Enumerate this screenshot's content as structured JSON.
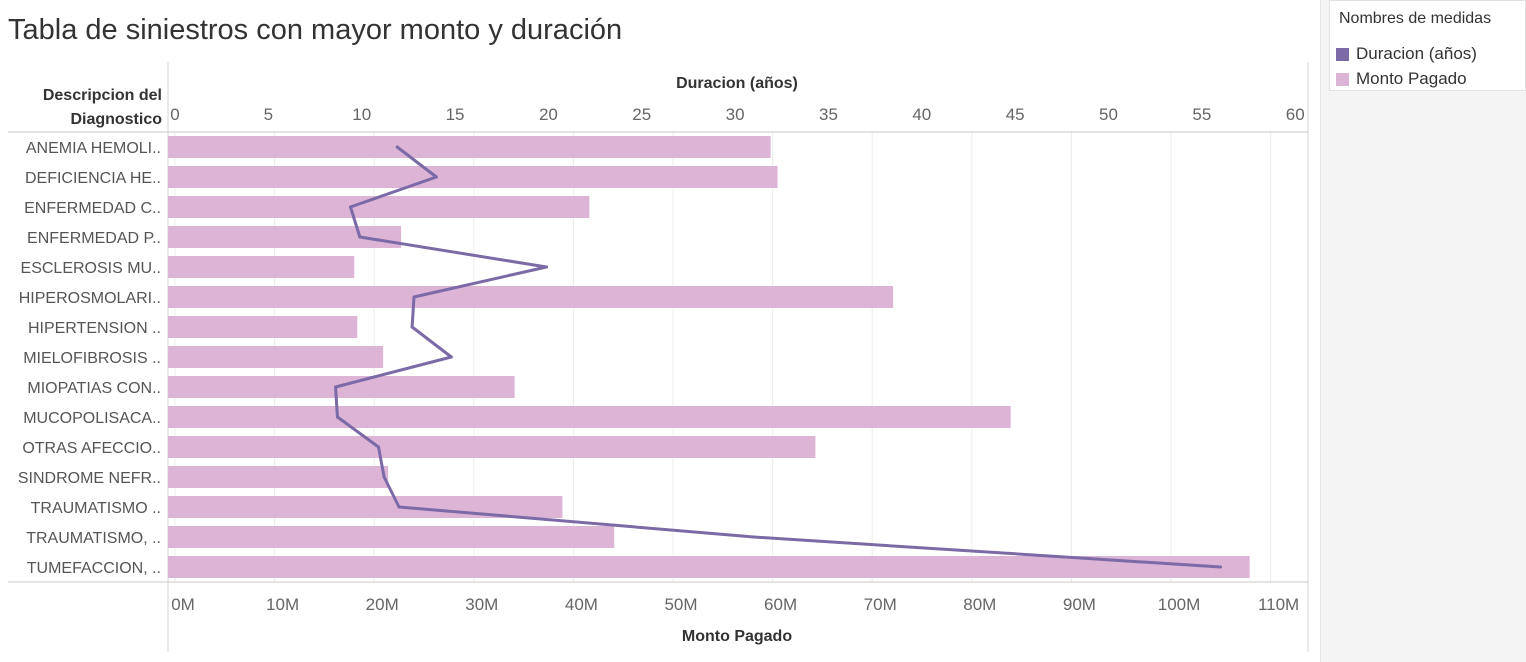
{
  "title": "Tabla de siniestros con mayor monto y duración",
  "row_header": {
    "line1": "Descripcion del",
    "line2": "Diagnostico"
  },
  "legend": {
    "title": "Nombres de medidas",
    "items": [
      {
        "label": "Duracion (años)",
        "color": "#7b6aa5"
      },
      {
        "label": "Monto Pagado",
        "color": "#dcb4d6"
      }
    ]
  },
  "chart_data": {
    "type": "bar",
    "title": "Tabla de siniestros con mayor monto y duración",
    "categories": [
      "ANEMIA HEMOLI..",
      "DEFICIENCIA HE..",
      "ENFERMEDAD C..",
      "ENFERMEDAD P..",
      "ESCLEROSIS MU..",
      "HIPEROSMOLARI..",
      "HIPERTENSION ..",
      "MIELOFIBROSIS ..",
      "MIOPATIAS CON..",
      "MUCOPOLISACA..",
      "OTRAS AFECCIO..",
      "SINDROME NEFR..",
      "TRAUMATISMO ..",
      "TRAUMATISMO, ..",
      "TUMEFACCION, .."
    ],
    "series": [
      {
        "name": "Monto Pagado",
        "axis": "bottom",
        "color": "#dcb4d6",
        "type": "bar",
        "values": [
          59.8,
          60.5,
          41.6,
          22.7,
          18.0,
          72.1,
          18.3,
          20.9,
          34.1,
          83.9,
          64.3,
          21.4,
          38.9,
          44.1,
          107.9
        ]
      },
      {
        "name": "Duracion (años)",
        "axis": "top",
        "color": "#7b6aa5",
        "type": "line",
        "values": [
          11.9,
          14.0,
          9.4,
          9.9,
          19.9,
          12.8,
          12.7,
          14.8,
          8.6,
          8.7,
          10.9,
          11.2,
          12.0,
          31.0,
          56.0
        ]
      }
    ],
    "x_bottom": {
      "label": "Monto Pagado",
      "min": 0,
      "max": 110,
      "ticks": [
        "0M",
        "10M",
        "20M",
        "30M",
        "40M",
        "50M",
        "60M",
        "70M",
        "80M",
        "90M",
        "100M",
        "110M"
      ],
      "tick_values": [
        0,
        10,
        20,
        30,
        40,
        50,
        60,
        70,
        80,
        90,
        100,
        110
      ]
    },
    "x_top": {
      "label": "Duracion (años)",
      "min": 0,
      "max": 60,
      "ticks": [
        "0",
        "5",
        "10",
        "15",
        "20",
        "25",
        "30",
        "35",
        "40",
        "45",
        "50",
        "55",
        "60"
      ],
      "tick_values": [
        0,
        5,
        10,
        15,
        20,
        25,
        30,
        35,
        40,
        45,
        50,
        55,
        60
      ]
    },
    "grid": true,
    "legend_position": "top-right"
  }
}
